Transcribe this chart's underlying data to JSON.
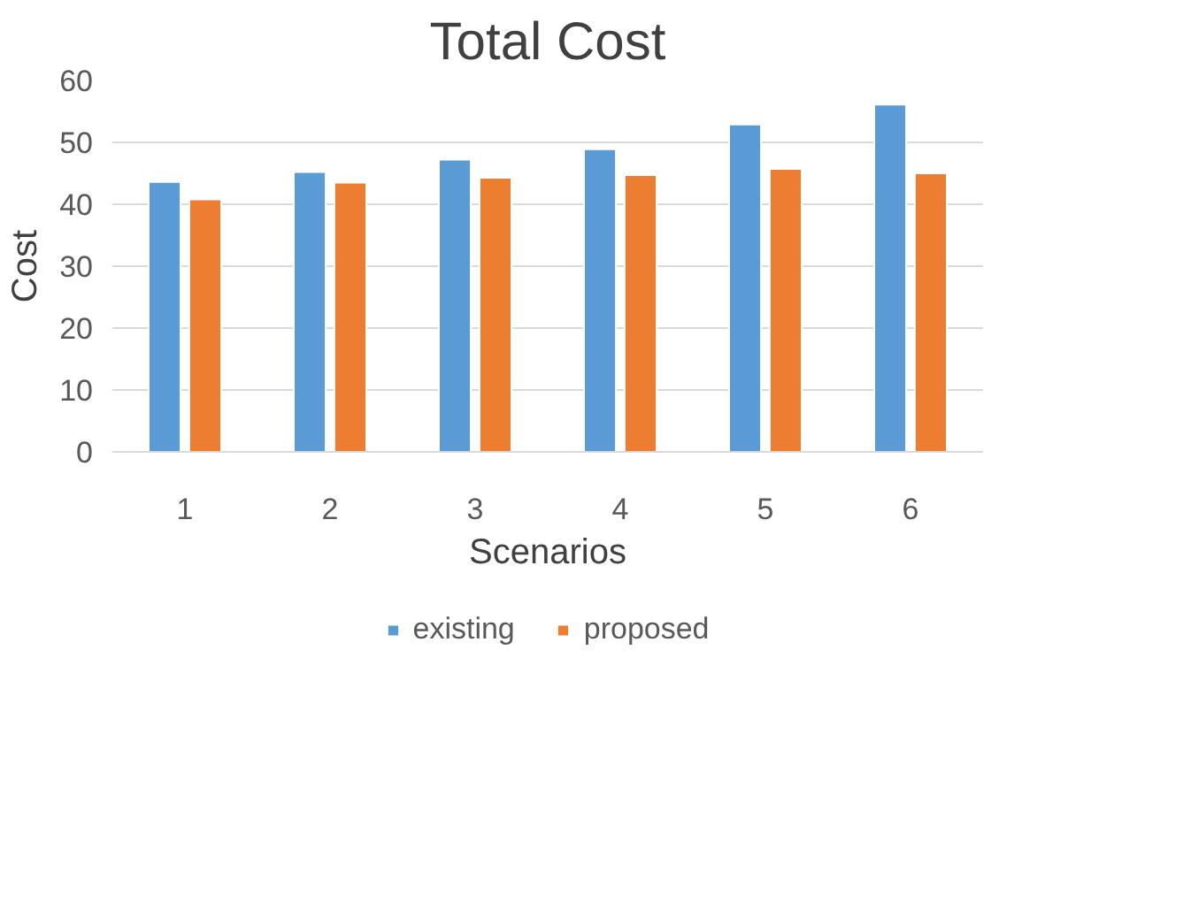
{
  "chart_data": {
    "type": "bar",
    "title": "Total Cost",
    "xlabel": "Scenarios",
    "ylabel": "Cost",
    "categories": [
      "1",
      "2",
      "3",
      "4",
      "5",
      "6"
    ],
    "series": [
      {
        "name": "existing",
        "color": "#5b9bd5",
        "values": [
          43.6,
          45.2,
          47.2,
          48.9,
          52.9,
          56.1
        ]
      },
      {
        "name": "proposed",
        "color": "#ed7d31",
        "values": [
          40.8,
          43.5,
          44.3,
          44.7,
          45.7,
          45.0
        ]
      }
    ],
    "ylim": [
      0,
      60
    ],
    "yticks": [
      0,
      10,
      20,
      30,
      40,
      50,
      60
    ],
    "grid": "y",
    "legend": "bottom"
  }
}
